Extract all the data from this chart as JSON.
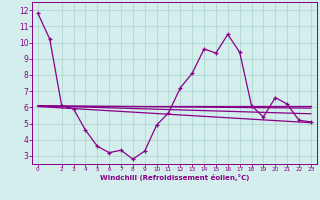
{
  "title": "",
  "xlabel": "Windchill (Refroidissement éolien,°C)",
  "background_color": "#d4eeed",
  "grid_color": "#b0d8d0",
  "line_color": "#880088",
  "text_color": "#880088",
  "ylim": [
    2.5,
    12.5
  ],
  "xlim": [
    -0.5,
    23.5
  ],
  "yticks": [
    3,
    4,
    5,
    6,
    7,
    8,
    9,
    10,
    11,
    12
  ],
  "xticks": [
    0,
    2,
    3,
    4,
    5,
    6,
    7,
    8,
    9,
    10,
    11,
    12,
    13,
    14,
    15,
    16,
    17,
    18,
    19,
    20,
    21,
    22,
    23
  ],
  "main_x": [
    0,
    1,
    2,
    3,
    4,
    5,
    6,
    7,
    8,
    9,
    10,
    11,
    12,
    13,
    14,
    15,
    16,
    17,
    18,
    19,
    20,
    21,
    22,
    23
  ],
  "main_y": [
    11.8,
    10.2,
    6.1,
    5.9,
    4.6,
    3.6,
    3.2,
    3.35,
    2.8,
    3.3,
    4.9,
    5.65,
    7.2,
    8.1,
    9.6,
    9.35,
    10.5,
    9.4,
    6.1,
    5.4,
    6.6,
    6.2,
    5.2,
    5.1
  ],
  "flat_lines": [
    {
      "x": [
        0,
        23
      ],
      "y": [
        6.1,
        6.1
      ]
    },
    {
      "x": [
        0,
        23
      ],
      "y": [
        6.1,
        5.95
      ]
    },
    {
      "x": [
        0,
        23
      ],
      "y": [
        6.1,
        5.6
      ]
    },
    {
      "x": [
        0,
        23
      ],
      "y": [
        6.05,
        5.05
      ]
    }
  ]
}
